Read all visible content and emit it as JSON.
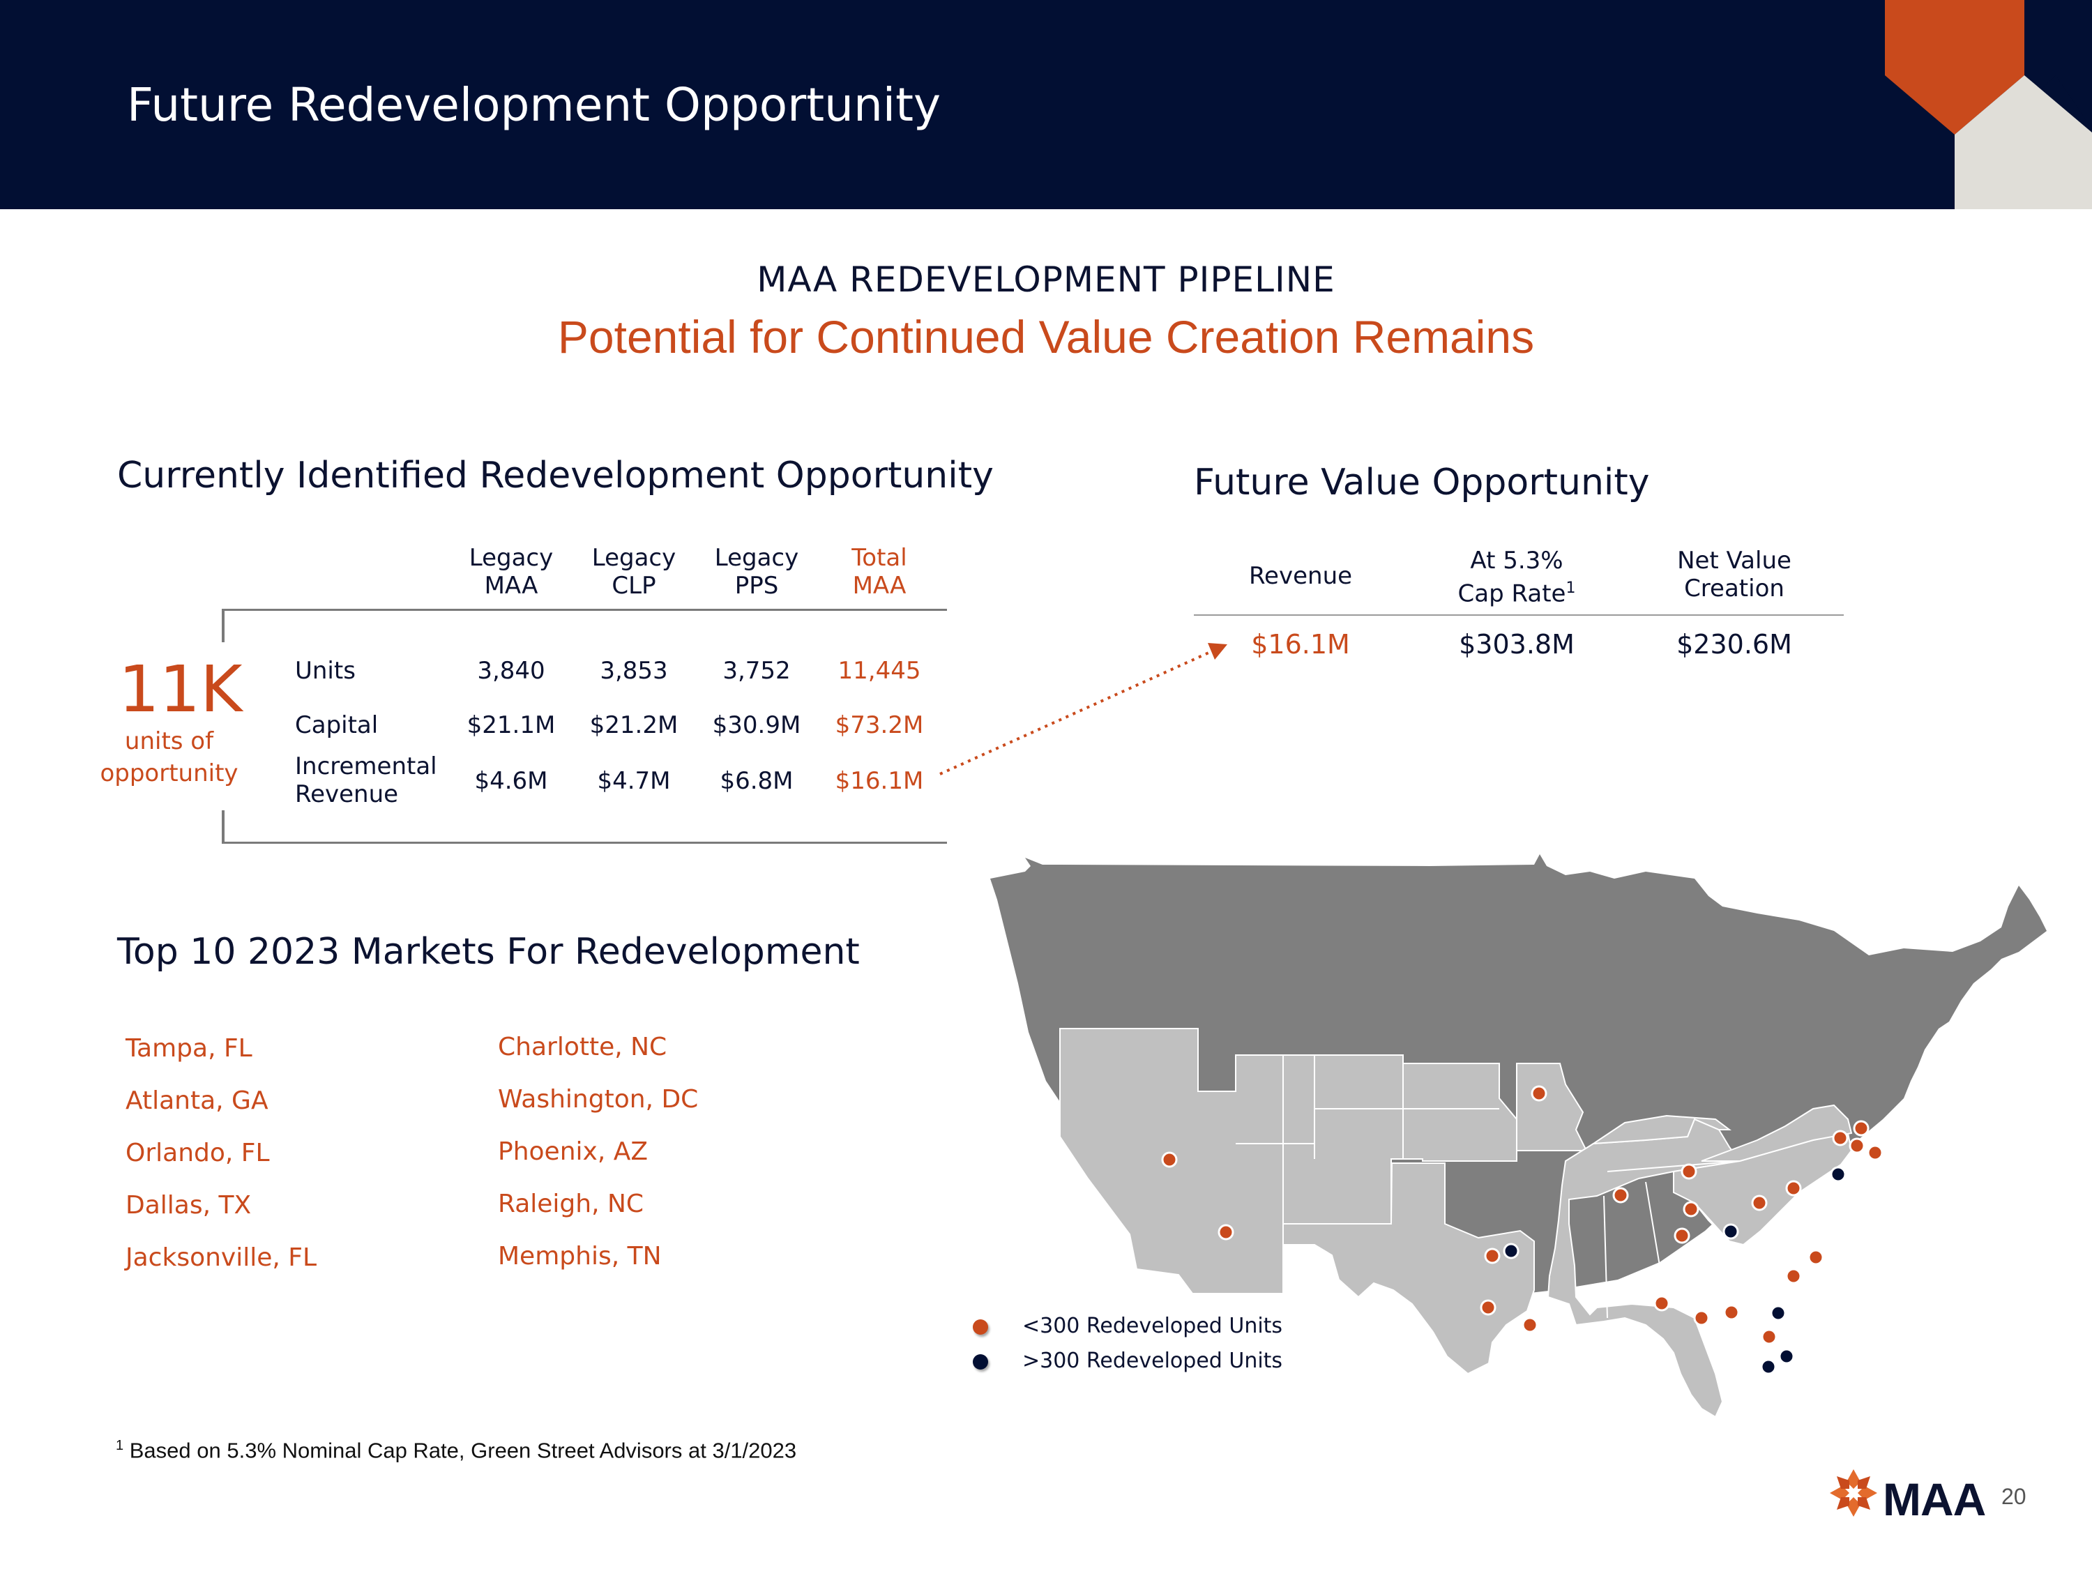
{
  "header": {
    "title": "Future Redevelopment Opportunity"
  },
  "kicker": "MAA REDEVELOPMENT PIPELINE",
  "headline": "Potential for Continued Value Creation Remains",
  "identified": {
    "title": "Currently Identified Redevelopment Opportunity",
    "columns": [
      {
        "line1": "Legacy",
        "line2": "MAA"
      },
      {
        "line1": "Legacy",
        "line2": "CLP"
      },
      {
        "line1": "Legacy",
        "line2": "PPS"
      },
      {
        "line1": "Total",
        "line2": "MAA"
      }
    ],
    "rows": [
      {
        "label": "Units",
        "values": [
          "3,840",
          "3,853",
          "3,752",
          "11,445"
        ]
      },
      {
        "label": "Capital",
        "values": [
          "$21.1M",
          "$21.2M",
          "$30.9M",
          "$73.2M"
        ]
      },
      {
        "label1": "Incremental",
        "label2": "Revenue",
        "values": [
          "$4.6M",
          "$4.7M",
          "$6.8M",
          "$16.1M"
        ]
      }
    ],
    "big_number": "11K",
    "big_label1": "units of",
    "big_label2": "opportunity"
  },
  "future_value": {
    "title": "Future Value Opportunity",
    "columns": {
      "revenue": "Revenue",
      "cap_line1": "At 5.3%",
      "cap_line2": "Cap Rate",
      "cap_sup": "1",
      "nvc_line1": "Net Value",
      "nvc_line2": "Creation"
    },
    "values": {
      "revenue": "$16.1M",
      "at_cap": "$303.8M",
      "net_value": "$230.6M"
    }
  },
  "markets": {
    "title": "Top 10 2023 Markets For Redevelopment",
    "left": [
      "Tampa, FL",
      "Atlanta, GA",
      "Orlando, FL",
      "Dallas, TX",
      "Jacksonville, FL"
    ],
    "right": [
      "Charlotte, NC",
      "Washington, DC",
      "Phoenix, AZ",
      "Raleigh, NC",
      "Memphis, TN"
    ]
  },
  "legend": {
    "small": "<300 Redeveloped Units",
    "large": ">300 Redeveloped Units"
  },
  "colors": {
    "navy": "#020f33",
    "orange": "#c94a1c",
    "map_dark": "#7f7f7f",
    "map_light": "#c0c0c0"
  },
  "footnote": {
    "sup": "1",
    "text": "Based on 5.3% Nominal Cap Rate, Green Street Advisors at 3/1/2023"
  },
  "logo": {
    "text": "MAA"
  },
  "page_number": "20"
}
